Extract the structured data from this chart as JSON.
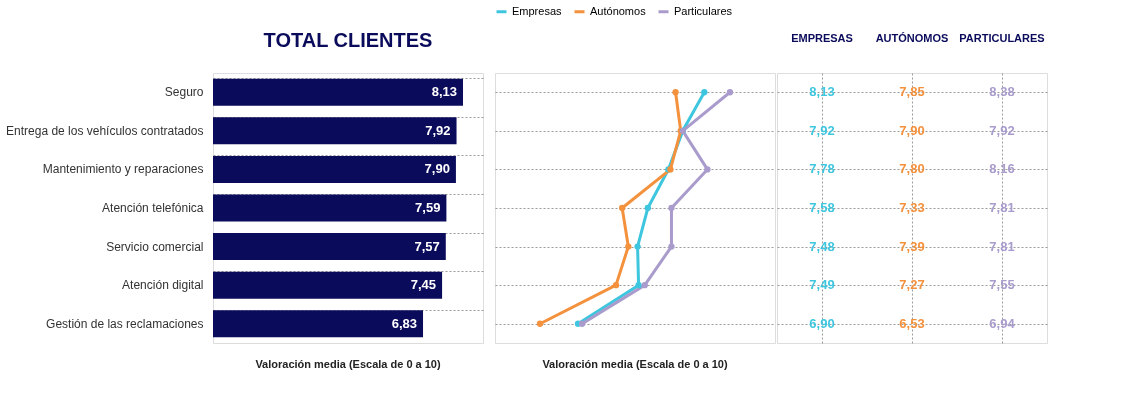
{
  "chart_data": [
    {
      "type": "bar",
      "orientation": "horizontal",
      "title": "TOTAL CLIENTES",
      "categories": [
        "Seguro",
        "Entrega de los vehículos contratados",
        "Mantenimiento y reparaciones",
        "Atención telefónica",
        "Servicio comercial",
        "Atención digital",
        "Gestión de las reclamaciones"
      ],
      "values": [
        8.13,
        7.92,
        7.9,
        7.59,
        7.57,
        7.45,
        6.83
      ],
      "value_labels": [
        "8,13",
        "7,92",
        "7,90",
        "7,59",
        "7,57",
        "7,45",
        "6,83"
      ],
      "color": "#0b0b5c",
      "grid": "y",
      "tick_labels": "y",
      "annotations": [
        "Valoración media (Escala de 0 a 10)"
      ]
    },
    {
      "type": "line",
      "orientation": "horizontal",
      "categories": [
        null,
        null,
        null,
        null,
        null,
        null,
        null
      ],
      "series": [
        {
          "name": "Empresas",
          "color": "#3fc6df",
          "values": [
            8.13,
            7.92,
            7.78,
            7.58,
            7.48,
            7.49,
            6.9
          ],
          "value_labels": [
            "8,13",
            "7,92",
            "7,78",
            "7,58",
            "7,48",
            "7,49",
            "6,90"
          ]
        },
        {
          "name": "Autónomos",
          "color": "#f4913d",
          "values": [
            7.85,
            7.9,
            7.8,
            7.33,
            7.39,
            7.27,
            6.53
          ],
          "value_labels": [
            "7,85",
            "7,90",
            "7,80",
            "7,33",
            "7,39",
            "7,27",
            "6,53"
          ]
        },
        {
          "name": "Particulares",
          "color": "#a99ccc",
          "values": [
            8.38,
            7.92,
            8.16,
            7.81,
            7.81,
            7.55,
            6.94
          ],
          "value_labels": [
            "8,38",
            "7,92",
            "8,16",
            "7,81",
            "7,81",
            "7,55",
            "6,94"
          ]
        }
      ],
      "marker": "circle",
      "line_style": "solid",
      "legend": "top",
      "grid": "y",
      "tick_labels": false,
      "annotations": [
        "EMPRESAS",
        "AUTÓNOMOS",
        "PARTICULARES",
        "Valoración media (Escala de 0 a 10)"
      ]
    }
  ]
}
